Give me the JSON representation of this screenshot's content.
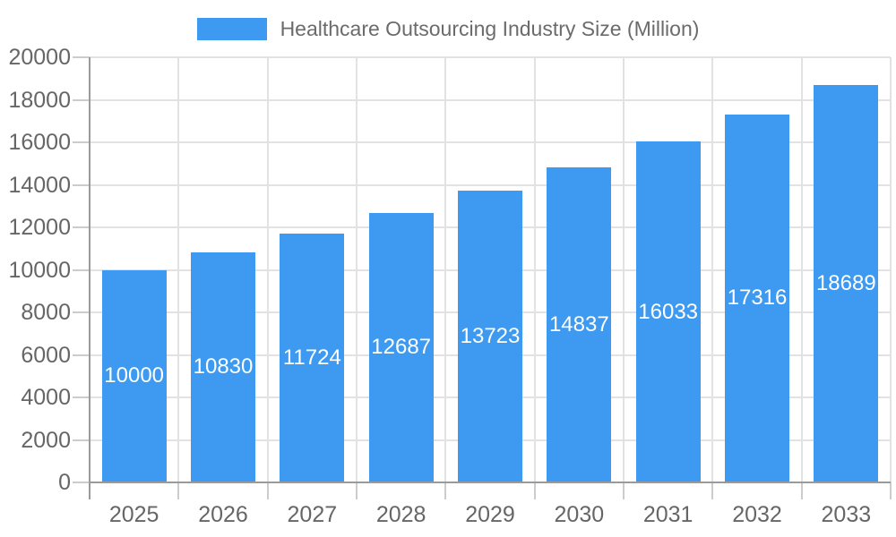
{
  "legend": {
    "label": "Healthcare Outsourcing Industry Size (Million)"
  },
  "chart_data": {
    "type": "bar",
    "title": "Healthcare Outsourcing Industry Size (Million)",
    "categories": [
      "2025",
      "2026",
      "2027",
      "2028",
      "2029",
      "2030",
      "2031",
      "2032",
      "2033"
    ],
    "series": [
      {
        "name": "Healthcare Outsourcing Industry Size (Million)",
        "values": [
          10000,
          10830,
          11724,
          12687,
          13723,
          14837,
          16033,
          17316,
          18689
        ]
      }
    ],
    "value_labels": [
      "10000",
      "10830",
      "11724",
      "12687",
      "13723",
      "14837",
      "16033",
      "17316",
      "18689"
    ],
    "value_label_placement": "inside-center",
    "xlabel": "",
    "ylabel": "",
    "ylim": [
      0,
      20000
    ],
    "ytick_step": 2000,
    "yticks": [
      0,
      2000,
      4000,
      6000,
      8000,
      10000,
      12000,
      14000,
      16000,
      18000,
      20000
    ],
    "grid": true,
    "legend_position": "top-center"
  },
  "colors": {
    "bar": "#3D9AF0",
    "grid": "#e2e2e2",
    "axis": "#9a9a9a",
    "tick": "#cccccc",
    "axis_text": "#666666",
    "legend_text": "#6b6b6b",
    "value_label_text": "#ffffff",
    "background": "#ffffff"
  }
}
